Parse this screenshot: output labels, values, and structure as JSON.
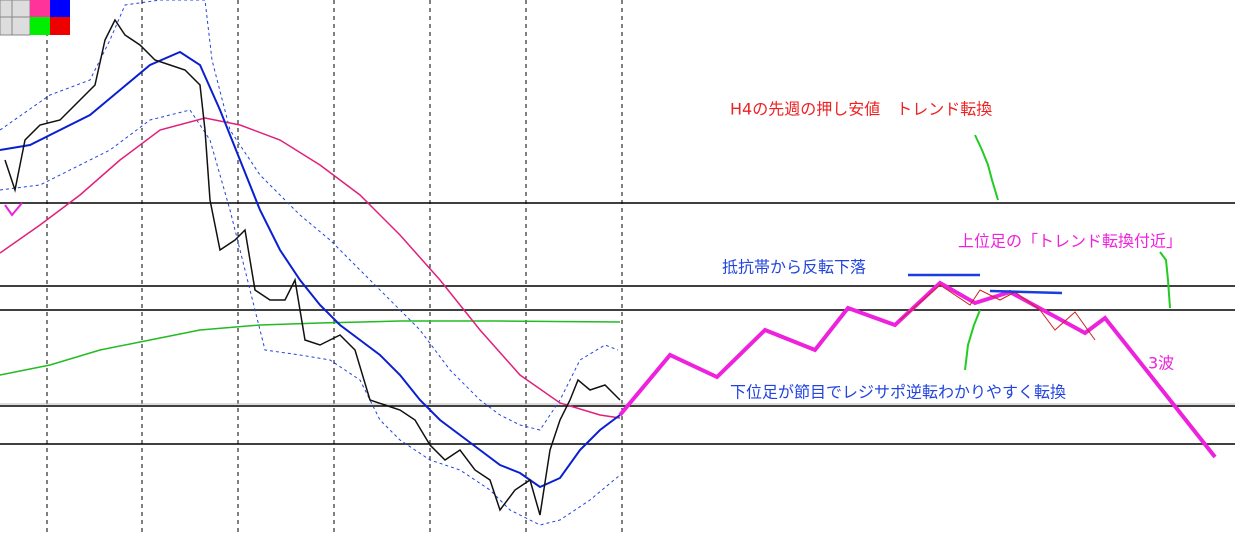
{
  "annotations": [
    "H4の先週の押し安値　トレンド転換",
    "上位足の「トレンド転換付近」",
    "抵抗帯から反転下落",
    "3波",
    "下位足が節目でレジサポ逆転わかりやすく転換"
  ]
}
